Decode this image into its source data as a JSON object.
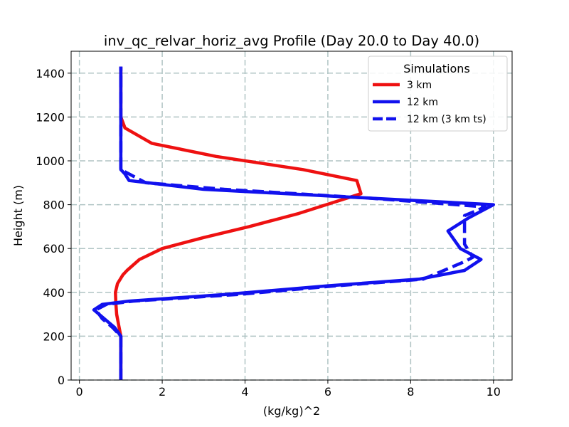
{
  "chart_data": {
    "type": "line",
    "title": "inv_qc_relvar_horiz_avg Profile (Day 20.0 to Day 40.0)",
    "xlabel": "(kg/kg)^2",
    "ylabel": "Height (m)",
    "xlim": [
      -0.2,
      10.45
    ],
    "ylim": [
      0,
      1500
    ],
    "xticks": [
      "0",
      "2",
      "4",
      "6",
      "8",
      "10"
    ],
    "yticks": [
      "0",
      "200",
      "400",
      "600",
      "800",
      "1000",
      "1200",
      "1400"
    ],
    "grid": true,
    "legend": {
      "title": "Simulations",
      "placement": "top-right"
    },
    "series": [
      {
        "name": "3 km",
        "color": "#ee1111",
        "style": "solid",
        "points": [
          [
            1.0,
            0
          ],
          [
            1.0,
            100
          ],
          [
            1.0,
            200
          ],
          [
            0.95,
            250
          ],
          [
            0.9,
            300
          ],
          [
            0.88,
            350
          ],
          [
            0.87,
            400
          ],
          [
            0.92,
            440
          ],
          [
            1.05,
            480
          ],
          [
            1.15,
            500
          ],
          [
            1.45,
            550
          ],
          [
            2.0,
            600
          ],
          [
            3.0,
            650
          ],
          [
            4.1,
            700
          ],
          [
            5.3,
            760
          ],
          [
            6.3,
            820
          ],
          [
            6.8,
            850
          ],
          [
            6.7,
            910
          ],
          [
            5.4,
            960
          ],
          [
            3.3,
            1020
          ],
          [
            1.75,
            1080
          ],
          [
            1.1,
            1150
          ],
          [
            1.0,
            1200
          ],
          [
            1.0,
            1300
          ],
          [
            1.0,
            1430
          ]
        ]
      },
      {
        "name": "12 km",
        "color": "#1111ee",
        "style": "solid",
        "points": [
          [
            1.0,
            0
          ],
          [
            1.0,
            200
          ],
          [
            0.85,
            240
          ],
          [
            0.6,
            280
          ],
          [
            0.35,
            320
          ],
          [
            0.55,
            345
          ],
          [
            1.2,
            360
          ],
          [
            3.5,
            390
          ],
          [
            6.0,
            430
          ],
          [
            8.2,
            460
          ],
          [
            9.3,
            500
          ],
          [
            9.7,
            550
          ],
          [
            9.2,
            600
          ],
          [
            8.9,
            680
          ],
          [
            9.4,
            740
          ],
          [
            10.0,
            800
          ],
          [
            7.0,
            830
          ],
          [
            3.0,
            870
          ],
          [
            1.2,
            910
          ],
          [
            1.1,
            940
          ],
          [
            1.0,
            960
          ],
          [
            1.0,
            1100
          ],
          [
            1.0,
            1430
          ]
        ]
      },
      {
        "name": "12 km (3 km ts)",
        "color": "#1111ee",
        "style": "dashed",
        "points": [
          [
            1.0,
            0
          ],
          [
            1.0,
            200
          ],
          [
            0.8,
            240
          ],
          [
            0.55,
            280
          ],
          [
            0.4,
            320
          ],
          [
            0.65,
            345
          ],
          [
            1.3,
            360
          ],
          [
            3.8,
            390
          ],
          [
            6.2,
            430
          ],
          [
            8.3,
            460
          ],
          [
            9.3,
            540
          ],
          [
            9.5,
            560
          ],
          [
            9.3,
            620
          ],
          [
            9.3,
            700
          ],
          [
            9.3,
            750
          ],
          [
            9.8,
            790
          ],
          [
            7.0,
            830
          ],
          [
            3.5,
            870
          ],
          [
            1.6,
            900
          ],
          [
            1.0,
            960
          ],
          [
            1.0,
            1100
          ],
          [
            1.0,
            1430
          ]
        ]
      }
    ]
  }
}
